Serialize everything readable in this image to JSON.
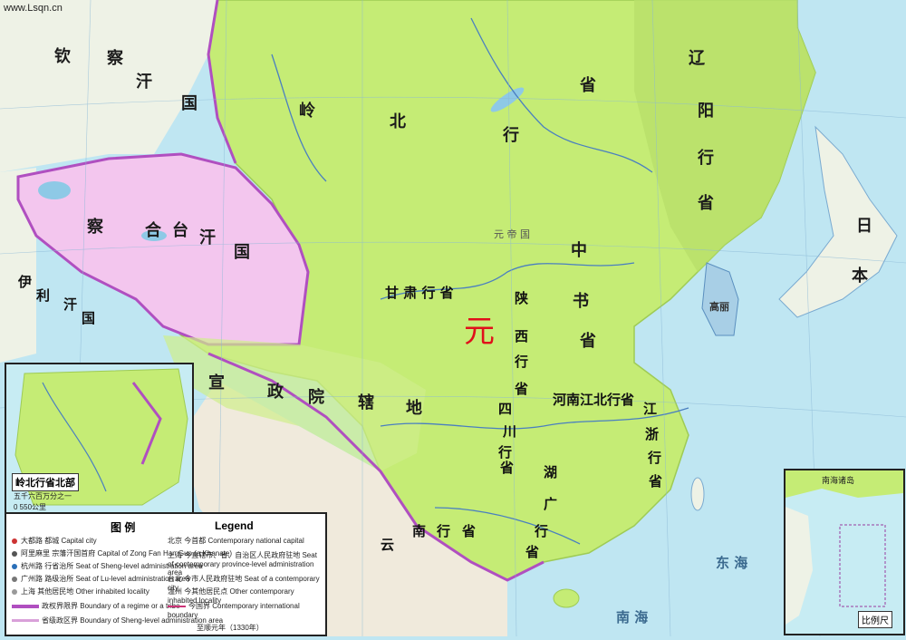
{
  "site": "www.Lsqn.cn",
  "map_title_char": "元",
  "regions": {
    "lingbei": [
      "岭",
      "北",
      "行",
      "省"
    ],
    "liaoyang": [
      "辽",
      "阳",
      "行",
      "省"
    ],
    "zhongshu": [
      "中",
      "书",
      "省"
    ],
    "gansu": "甘 肃 行 省",
    "shaanxi": [
      "陕",
      "西",
      "行",
      "省"
    ],
    "sichuan": [
      "四",
      "川",
      "行",
      "省"
    ],
    "xuanzheng": [
      "宣",
      "政",
      "院",
      "辖",
      "地"
    ],
    "yunnan": [
      "云",
      "南",
      "行",
      "省"
    ],
    "huguang": [
      "湖",
      "广",
      "行",
      "省"
    ],
    "jiangzhe": [
      "江",
      "浙",
      "行",
      "省"
    ],
    "henan": "河南江北行省",
    "chagatai": [
      "察",
      "合",
      "台",
      "汗",
      "国"
    ],
    "qincha": [
      "钦",
      "察",
      "汗",
      "国"
    ],
    "yili": [
      "伊",
      "利",
      "汗",
      "国"
    ],
    "japan": [
      "日",
      "本"
    ],
    "goryeo": "高丽",
    "lifan": "元 帝 国"
  },
  "sea_labels": {
    "sea1": "东 海",
    "sea2": "南 海"
  },
  "inset_left": {
    "title": "岭北行省北部",
    "scale_note": "五千六百万分之一",
    "scale_bar": "0      550公里"
  },
  "inset_right": {
    "title": "比例尺",
    "top_label": "南海诸岛"
  },
  "legend": {
    "title_cn": "图        例",
    "title_en": "Legend",
    "items": [
      {
        "cn": "大都路",
        "cn2": "都城",
        "en": "Capital city"
      },
      {
        "cn": "阿里麻里",
        "cn2": "宗藩汗国首府",
        "en": "Capital of Zong Fan Han Guo (a Khanate)"
      },
      {
        "cn": "杭州路",
        "cn2": "行省治所",
        "en": "Seat of Sheng-level administration area"
      },
      {
        "cn": "广州路",
        "cn2": "路级治所",
        "en": "Seat of Lu-level administration area"
      },
      {
        "cn": "上海",
        "cn2": "其他居民地",
        "en": "Other inhabited locality"
      },
      {
        "cn": "",
        "cn2": "政权界限界",
        "en": "Boundary of a regime or a tribe"
      },
      {
        "cn": "",
        "cn2": "省级政区界",
        "en": "Boundary of Sheng-level administration area"
      }
    ],
    "items_right": [
      {
        "cn": "北京",
        "cn2": "今首都",
        "en": "Contemporary national capital"
      },
      {
        "cn": "上海",
        "cn2": "今直辖市、省、自治区人民政府驻地",
        "en": "Seat of contemporary province-level administration area"
      },
      {
        "cn": "台北",
        "cn2": "今市人民政府驻地",
        "en": "Seat of a contemporary city"
      },
      {
        "cn": "温州",
        "cn2": "今其他居民点",
        "en": "Other contemporary inhabited locality"
      },
      {
        "cn": "",
        "cn2": "今国界",
        "en": "Contemporary international boundary"
      }
    ],
    "footnote": "至顺元年（1330年）"
  },
  "colors": {
    "yuan_green": "#c5ec75",
    "yuan_green_dark": "#aedc5e",
    "khanate_pink": "#f3c6ee",
    "khanate_border": "#b04fc0",
    "sea": "#bfe6f2",
    "foreign_land": "#eef2e6",
    "river": "#4a7fc0"
  }
}
